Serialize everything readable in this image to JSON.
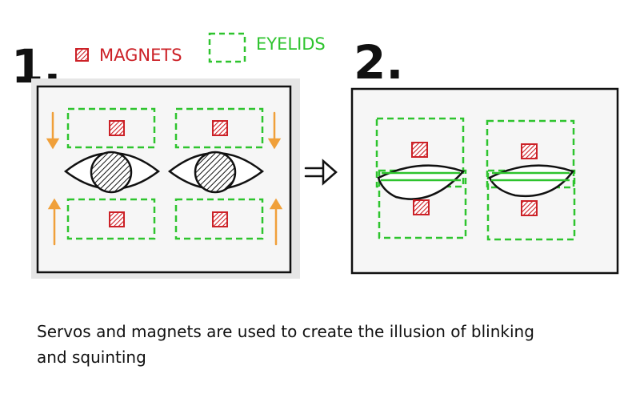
{
  "step1_label": "1.",
  "step2_label": "2.",
  "legend": {
    "magnets_label": "MAGNETS",
    "eyelids_label": "EYELIDS"
  },
  "arrow_label": "=>",
  "caption_line1": "Servos and magnets are used to create the illusion of blinking",
  "caption_line2": "and squinting",
  "colors": {
    "magnet": "#cc2127",
    "eyelid": "#2ec42e",
    "servo_arrow": "#f0a03a",
    "outline": "#111111"
  }
}
